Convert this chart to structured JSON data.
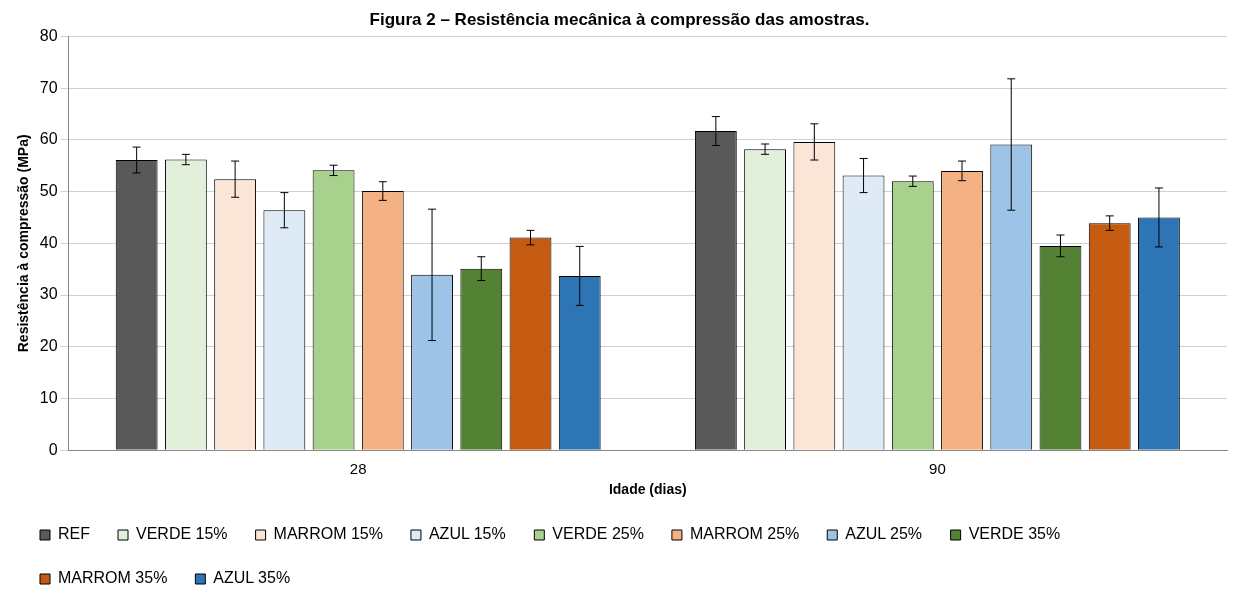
{
  "chart_data": {
    "type": "bar",
    "title": "Figura 2 – Resistência mecânica à compressão das amostras.",
    "xlabel": "Idade (dias)",
    "ylabel": "Resistência à compressão (MPa)",
    "categories": [
      "28",
      "90"
    ],
    "ylim": [
      0,
      80
    ],
    "yticks": [
      0,
      10,
      20,
      30,
      40,
      50,
      60,
      70,
      80
    ],
    "grid": "y",
    "legend": "bottom",
    "series": [
      {
        "name": "REF",
        "color": "#595959",
        "values": [
          56.1,
          61.7
        ],
        "errors": [
          2.5,
          2.8
        ]
      },
      {
        "name": "VERDE 15%",
        "color": "#e2efda",
        "values": [
          56.2,
          58.2
        ],
        "errors": [
          1,
          1
        ]
      },
      {
        "name": "MARROM 15%",
        "color": "#fbe5d6",
        "values": [
          52.4,
          59.6
        ],
        "errors": [
          3.5,
          3.5
        ]
      },
      {
        "name": "AZUL 15%",
        "color": "#deebf7",
        "values": [
          46.4,
          53.1
        ],
        "errors": [
          3.4,
          3.3
        ]
      },
      {
        "name": "VERDE 25%",
        "color": "#a9d18e",
        "values": [
          54.1,
          52.0
        ],
        "errors": [
          1,
          1
        ]
      },
      {
        "name": "MARROM 25%",
        "color": "#f4b183",
        "values": [
          50.1,
          54.0
        ],
        "errors": [
          1.8,
          1.9
        ]
      },
      {
        "name": "AZUL 25%",
        "color": "#9dc3e6",
        "values": [
          33.9,
          59.1
        ],
        "errors": [
          12.7,
          12.7
        ]
      },
      {
        "name": "VERDE 35%",
        "color": "#548235",
        "values": [
          35.1,
          39.5
        ],
        "errors": [
          2.3,
          2.1
        ]
      },
      {
        "name": "MARROM 35%",
        "color": "#c55a11",
        "values": [
          41.1,
          43.9
        ],
        "errors": [
          1.4,
          1.4
        ]
      },
      {
        "name": "AZUL 35%",
        "color": "#2e75b6",
        "values": [
          33.7,
          45.0
        ],
        "errors": [
          5.7,
          5.7
        ]
      }
    ]
  }
}
